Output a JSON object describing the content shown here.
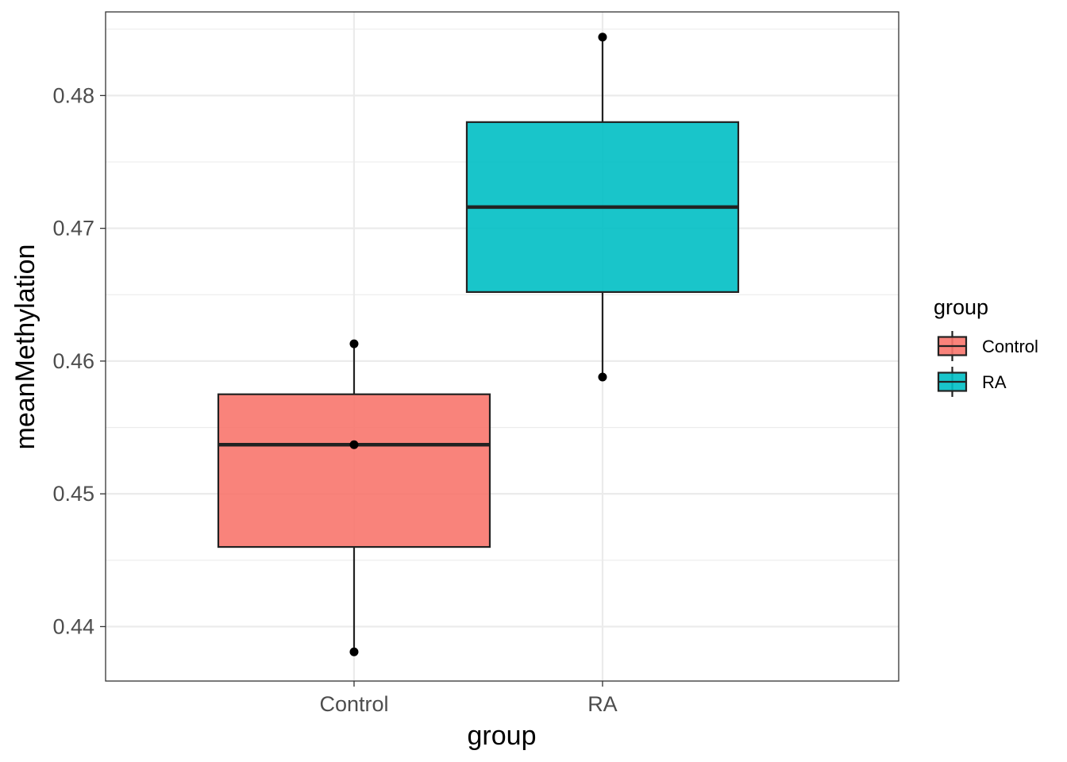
{
  "chart_data": {
    "type": "boxplot",
    "xlabel": "group",
    "ylabel": "meanMethylation",
    "categories": [
      "Control",
      "RA"
    ],
    "ylim": [
      0.4359,
      0.4863
    ],
    "yticks": [
      0.44,
      0.45,
      0.46,
      0.47,
      0.48
    ],
    "ytick_labels": [
      "0.44",
      "0.45",
      "0.46",
      "0.47",
      "0.48"
    ],
    "grid": true,
    "legend": {
      "title": "group",
      "position": "right",
      "entries": [
        "Control",
        "RA"
      ]
    },
    "boxes": [
      {
        "category": "Control",
        "min": 0.4381,
        "q1": 0.446,
        "median": 0.4537,
        "q3": 0.4575,
        "max": 0.4613,
        "points": [
          0.4381,
          0.4537,
          0.4613
        ],
        "fill": "#F8766D"
      },
      {
        "category": "RA",
        "min": 0.4588,
        "q1": 0.4652,
        "median": 0.4716,
        "q3": 0.478,
        "max": 0.4844,
        "points": [
          0.4588,
          0.4844
        ],
        "fill": "#00BFC4"
      }
    ]
  }
}
